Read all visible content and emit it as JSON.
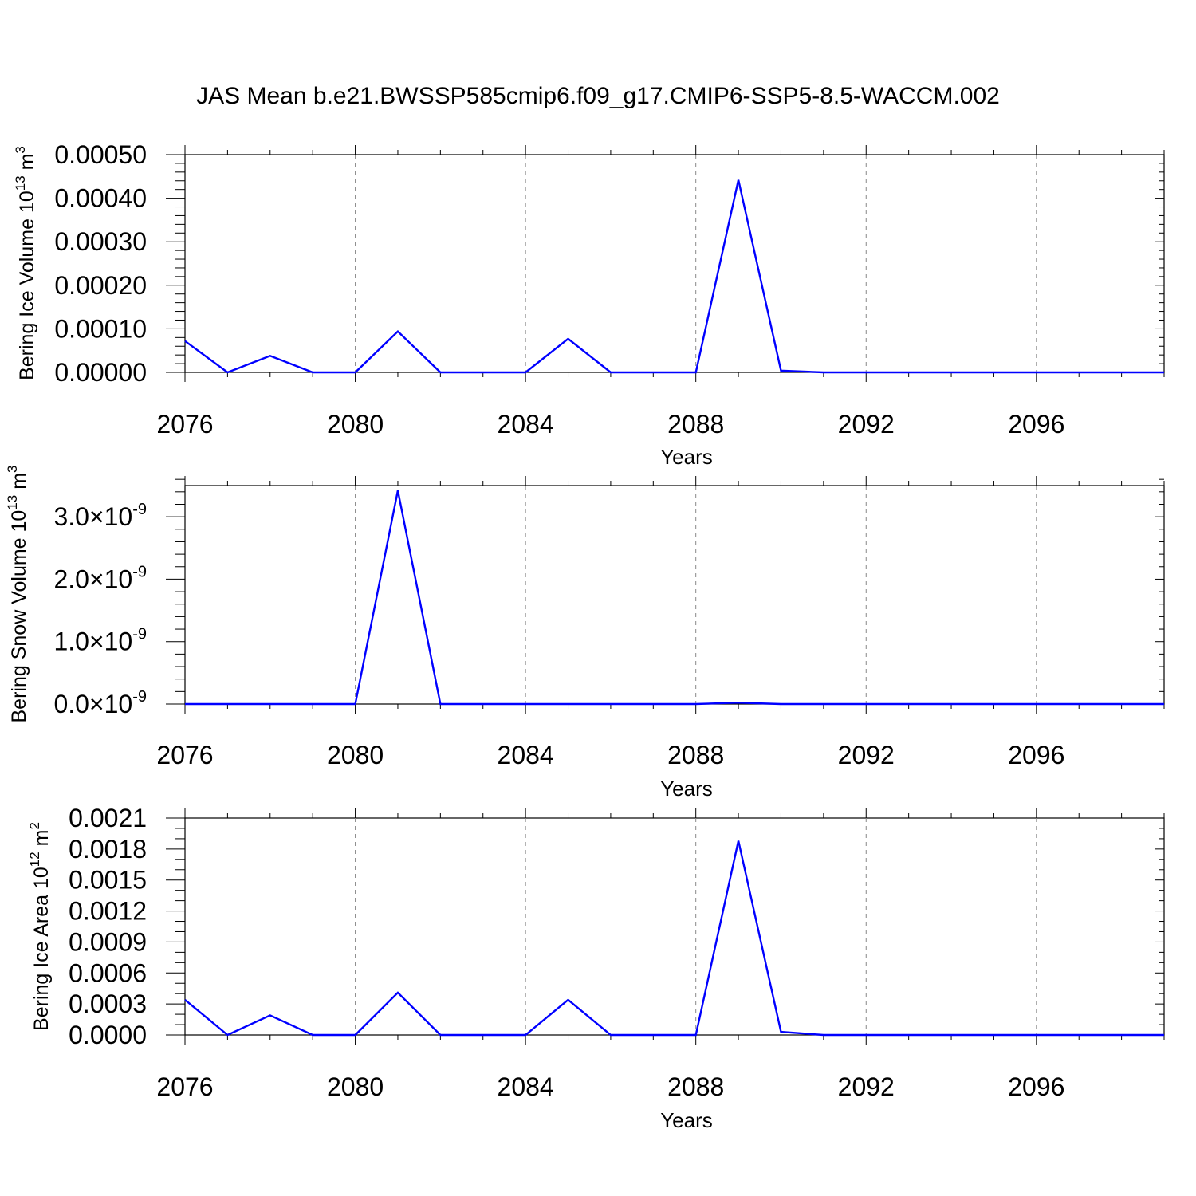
{
  "figure": {
    "title": "JAS Mean b.e21.BWSSP585cmip6.f09_g17.CMIP6-SSP5-8.5-WACCM.002"
  },
  "chart_data": [
    {
      "type": "line",
      "title": "",
      "xlabel": "Years",
      "ylabel": {
        "prefix": "Bering Ice Volume 10",
        "exp": "13",
        "unit": " m",
        "unit_exp": "3"
      },
      "xlim": [
        2076,
        2099
      ],
      "ylim": [
        0,
        0.0005
      ],
      "x_ticks": [
        2076,
        2080,
        2084,
        2088,
        2092,
        2096
      ],
      "x_tick_labels": [
        "2076",
        "2080",
        "2084",
        "2088",
        "2092",
        "2096"
      ],
      "y_ticks": [
        0,
        0.0001,
        0.0002,
        0.0003,
        0.0004,
        0.0005
      ],
      "y_tick_labels": [
        {
          "mant": "0.00000"
        },
        {
          "mant": "0.00010"
        },
        {
          "mant": "0.00020"
        },
        {
          "mant": "0.00030"
        },
        {
          "mant": "0.00040"
        },
        {
          "mant": "0.00050"
        }
      ],
      "x_minor_step": 1,
      "y_minor_step": 2e-05,
      "grid": "vertical dashed at major x ticks",
      "line_color": "#0000ff",
      "series": [
        {
          "x": [
            2076,
            2077,
            2078,
            2079,
            2080,
            2081,
            2082,
            2083,
            2084,
            2085,
            2086,
            2087,
            2088,
            2089,
            2090,
            2091,
            2092,
            2093,
            2094,
            2095,
            2096,
            2097,
            2098,
            2099
          ],
          "values": [
            7.2e-05,
            0,
            3.8e-05,
            0,
            0,
            9.4e-05,
            0,
            0,
            0,
            7.7e-05,
            0,
            0,
            0,
            0.000442,
            4e-06,
            0,
            0,
            0,
            0,
            0,
            0,
            0,
            0,
            0
          ]
        }
      ]
    },
    {
      "type": "line",
      "title": "",
      "xlabel": "Years",
      "ylabel": {
        "prefix": "Bering Snow Volume 10",
        "exp": "13",
        "unit": " m",
        "unit_exp": "3"
      },
      "xlim": [
        2076,
        2099
      ],
      "ylim": [
        0,
        3.5e-09
      ],
      "x_ticks": [
        2076,
        2080,
        2084,
        2088,
        2092,
        2096
      ],
      "x_tick_labels": [
        "2076",
        "2080",
        "2084",
        "2088",
        "2092",
        "2096"
      ],
      "y_ticks": [
        0,
        1e-09,
        2e-09,
        3e-09
      ],
      "y_tick_labels": [
        {
          "mant": "0.0",
          "times": "×",
          "base": "10",
          "exp": "-9"
        },
        {
          "mant": "1.0",
          "times": "×",
          "base": "10",
          "exp": "-9"
        },
        {
          "mant": "2.0",
          "times": "×",
          "base": "10",
          "exp": "-9"
        },
        {
          "mant": "3.0",
          "times": "×",
          "base": "10",
          "exp": "-9"
        }
      ],
      "x_minor_step": 1,
      "y_minor_step": 2e-10,
      "grid": "vertical dashed at major x ticks",
      "line_color": "#0000ff",
      "series": [
        {
          "x": [
            2076,
            2077,
            2078,
            2079,
            2080,
            2081,
            2082,
            2083,
            2084,
            2085,
            2086,
            2087,
            2088,
            2089,
            2090,
            2091,
            2092,
            2093,
            2094,
            2095,
            2096,
            2097,
            2098,
            2099
          ],
          "values": [
            0,
            0,
            0,
            0,
            0,
            3.42e-09,
            0,
            0,
            0,
            0,
            0,
            0,
            0,
            2.2e-11,
            0,
            0,
            0,
            0,
            0,
            0,
            0,
            0,
            0,
            0
          ]
        }
      ]
    },
    {
      "type": "line",
      "title": "",
      "xlabel": "Years",
      "ylabel": {
        "prefix": "Bering Ice Area 10",
        "exp": "12",
        "unit": " m",
        "unit_exp": "2"
      },
      "xlim": [
        2076,
        2099
      ],
      "ylim": [
        0,
        0.0021
      ],
      "x_ticks": [
        2076,
        2080,
        2084,
        2088,
        2092,
        2096
      ],
      "x_tick_labels": [
        "2076",
        "2080",
        "2084",
        "2088",
        "2092",
        "2096"
      ],
      "y_ticks": [
        0,
        0.0003,
        0.0006,
        0.0009,
        0.0012,
        0.0015,
        0.0018,
        0.0021
      ],
      "y_tick_labels": [
        {
          "mant": "0.0000"
        },
        {
          "mant": "0.0003"
        },
        {
          "mant": "0.0006"
        },
        {
          "mant": "0.0009"
        },
        {
          "mant": "0.0012"
        },
        {
          "mant": "0.0015"
        },
        {
          "mant": "0.0018"
        },
        {
          "mant": "0.0021"
        }
      ],
      "x_minor_step": 1,
      "y_minor_step": 0.0001,
      "grid": "vertical dashed at major x ticks",
      "line_color": "#0000ff",
      "series": [
        {
          "x": [
            2076,
            2077,
            2078,
            2079,
            2080,
            2081,
            2082,
            2083,
            2084,
            2085,
            2086,
            2087,
            2088,
            2089,
            2090,
            2091,
            2092,
            2093,
            2094,
            2095,
            2096,
            2097,
            2098,
            2099
          ],
          "values": [
            0.00034,
            0,
            0.00019,
            0,
            0,
            0.00041,
            0,
            0,
            0,
            0.00034,
            0,
            0,
            0,
            0.00188,
            3e-05,
            0,
            0,
            0,
            0,
            0,
            0,
            0,
            0,
            0
          ]
        }
      ]
    }
  ]
}
